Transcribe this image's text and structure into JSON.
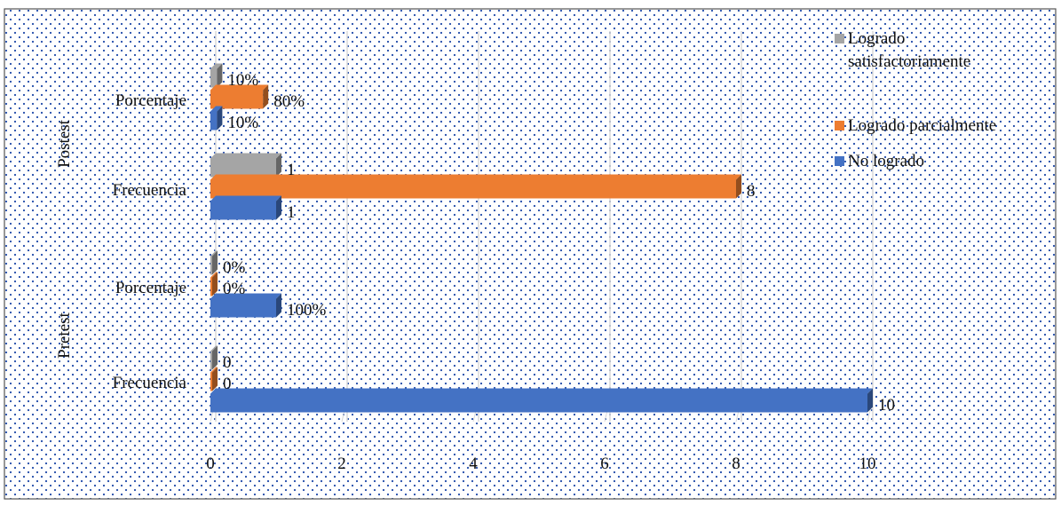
{
  "chart_data": {
    "type": "bar",
    "orientation": "horizontal",
    "groups": [
      {
        "label": "Postest",
        "categories": [
          "Porcentaje",
          "Frecuencia"
        ]
      },
      {
        "label": "Pretest",
        "categories": [
          "Porcentaje",
          "Frecuencia"
        ]
      }
    ],
    "rows": [
      {
        "group": "Postest",
        "category": "Porcentaje",
        "values": {
          "Logrado satisfactoriamente": 0.1,
          "Logrado parcialmente": 0.8,
          "No logrado": 0.1
        },
        "labels": {
          "Logrado satisfactoriamente": "10%",
          "Logrado parcialmente": "80%",
          "No logrado": "10%"
        }
      },
      {
        "group": "Postest",
        "category": "Frecuencia",
        "values": {
          "Logrado satisfactoriamente": 1,
          "Logrado parcialmente": 8,
          "No logrado": 1
        },
        "labels": {
          "Logrado satisfactoriamente": "1",
          "Logrado parcialmente": "8",
          "No logrado": "1"
        }
      },
      {
        "group": "Pretest",
        "category": "Porcentaje",
        "values": {
          "Logrado satisfactoriamente": 0,
          "Logrado parcialmente": 0,
          "No logrado": 1
        },
        "labels": {
          "Logrado satisfactoriamente": "0%",
          "Logrado parcialmente": "0%",
          "No logrado": "100%"
        }
      },
      {
        "group": "Pretest",
        "category": "Frecuencia",
        "values": {
          "Logrado satisfactoriamente": 0,
          "Logrado parcialmente": 0,
          "No logrado": 10
        },
        "labels": {
          "Logrado satisfactoriamente": "0",
          "Logrado parcialmente": "0",
          "No logrado": "10"
        }
      }
    ],
    "series": [
      {
        "name": "Logrado satisfactoriamente",
        "legend_lines": [
          "Logrado",
          "satisfactoriamente"
        ],
        "color": "#a5a5a5"
      },
      {
        "name": "Logrado parcialmente",
        "legend_lines": [
          "Logrado parcialmente"
        ],
        "color": "#ed7d31"
      },
      {
        "name": "No logrado",
        "legend_lines": [
          "No logrado"
        ],
        "color": "#4472c4"
      }
    ],
    "x_ticks": [
      "0",
      "2",
      "4",
      "6",
      "8",
      "10"
    ],
    "xlim": [
      0,
      10
    ],
    "grid": true,
    "legend_position": "top-right",
    "title": "",
    "xlabel": "",
    "ylabel": ""
  }
}
